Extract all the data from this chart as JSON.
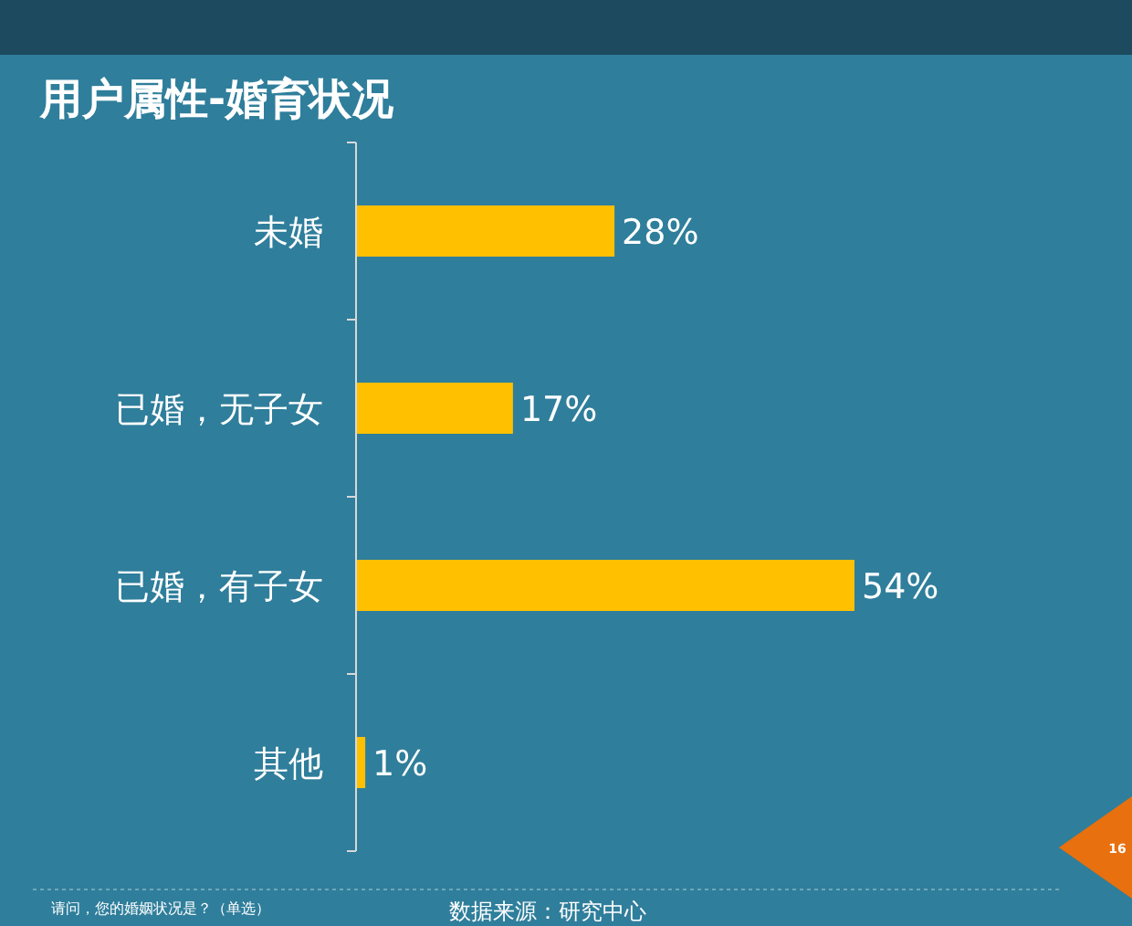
{
  "chart_data": {
    "type": "bar",
    "orientation": "horizontal",
    "title": "用户属性-婚育状况",
    "categories": [
      "未婚",
      "已婚，无子女",
      "已婚，有子女",
      "其他"
    ],
    "values": [
      28,
      17,
      54,
      1
    ],
    "color": "#ffc000",
    "value_labels": [
      "28%",
      "17%",
      "54%",
      "1%"
    ],
    "annotations": [
      "请问，您的婚姻状况是？（单选）",
      "数据来源：研究中心",
      "16"
    ]
  }
}
